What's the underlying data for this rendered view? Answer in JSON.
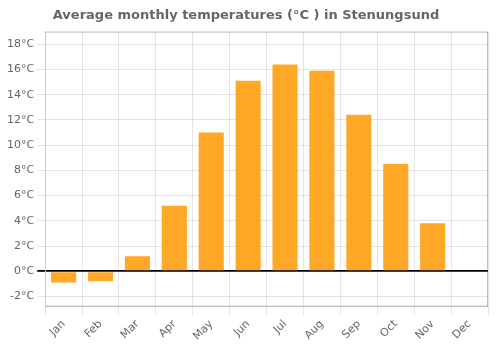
{
  "chart_data": {
    "type": "bar",
    "title": "Average monthly temperatures (°C ) in Stenungsund",
    "categories": [
      "Jan",
      "Feb",
      "Mar",
      "Apr",
      "May",
      "Jun",
      "Jul",
      "Aug",
      "Sep",
      "Oct",
      "Nov",
      "Dec"
    ],
    "values": [
      -0.9,
      -0.8,
      1.2,
      5.2,
      11.0,
      15.1,
      16.4,
      15.9,
      12.4,
      8.5,
      3.8,
      0.0
    ],
    "color": "#FFA726",
    "ylim": [
      -2.8,
      19.0
    ],
    "yticks": [
      {
        "value": -2,
        "label": "-2°C"
      },
      {
        "value": 0,
        "label": "0°C"
      },
      {
        "value": 2,
        "label": "2°C"
      },
      {
        "value": 4,
        "label": "4°C"
      },
      {
        "value": 6,
        "label": "6°C"
      },
      {
        "value": 8,
        "label": "8°C"
      },
      {
        "value": 10,
        "label": "10°C"
      },
      {
        "value": 12,
        "label": "12°C"
      },
      {
        "value": 14,
        "label": "14°C"
      },
      {
        "value": 16,
        "label": "16°C"
      },
      {
        "value": 18,
        "label": "18°C"
      }
    ],
    "grid": true
  }
}
